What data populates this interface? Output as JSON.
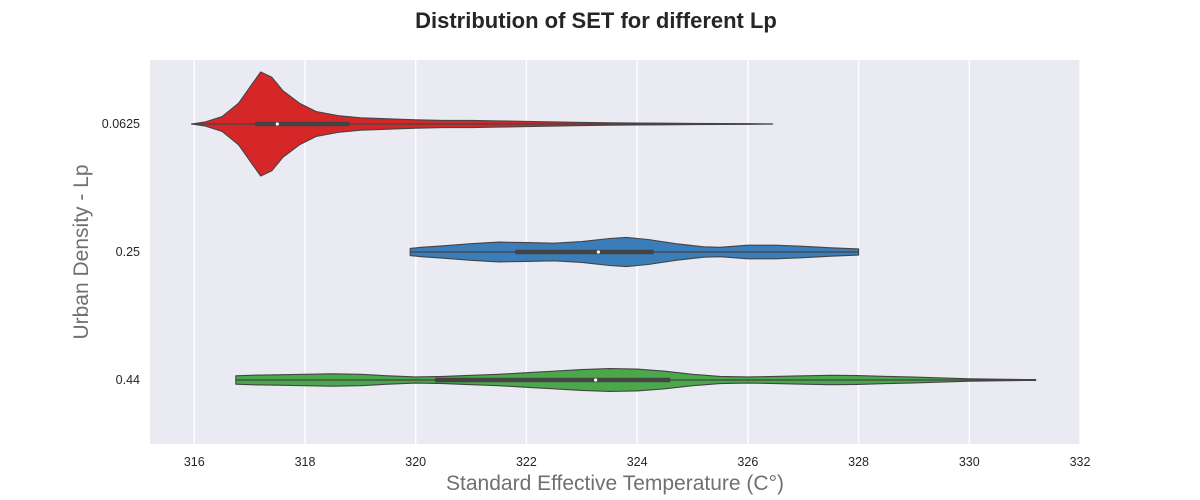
{
  "chart_data": {
    "type": "violin",
    "orientation": "horizontal",
    "title": "Distribution of SET for different Lp",
    "xlabel": "Standard Effective Temperature (C°)",
    "ylabel": "Urban Density - Lp",
    "xlim": [
      315.2,
      332
    ],
    "xticks": [
      316,
      318,
      320,
      322,
      324,
      326,
      328,
      330,
      332
    ],
    "grid": true,
    "background": "#eaeaf2",
    "grid_color": "#ffffff",
    "edge_color": "#444444",
    "categories": [
      "0.0625",
      "0.25",
      "0.44"
    ],
    "series": [
      {
        "category": "0.0625",
        "color": "#d62728",
        "min": 315.95,
        "max": 326.45,
        "q1": 317.1,
        "median": 317.5,
        "q3": 318.8,
        "profile": [
          [
            315.95,
            0.0
          ],
          [
            316.2,
            0.02
          ],
          [
            316.5,
            0.07
          ],
          [
            316.8,
            0.2
          ],
          [
            317.0,
            0.35
          ],
          [
            317.2,
            0.5
          ],
          [
            317.4,
            0.45
          ],
          [
            317.6,
            0.32
          ],
          [
            317.9,
            0.2
          ],
          [
            318.2,
            0.12
          ],
          [
            318.6,
            0.08
          ],
          [
            319.0,
            0.06
          ],
          [
            319.5,
            0.05
          ],
          [
            320.0,
            0.04
          ],
          [
            320.5,
            0.035
          ],
          [
            321.0,
            0.035
          ],
          [
            321.5,
            0.03
          ],
          [
            322.0,
            0.025
          ],
          [
            322.5,
            0.02
          ],
          [
            323.0,
            0.015
          ],
          [
            323.5,
            0.012
          ],
          [
            324.0,
            0.01
          ],
          [
            324.5,
            0.008
          ],
          [
            325.0,
            0.006
          ],
          [
            325.5,
            0.004
          ],
          [
            326.0,
            0.003
          ],
          [
            326.45,
            0.0
          ]
        ]
      },
      {
        "category": "0.25",
        "color": "#3a7db8",
        "min": 319.9,
        "max": 328.0,
        "q1": 321.8,
        "median": 323.3,
        "q3": 324.3,
        "profile": [
          [
            319.9,
            0.035
          ],
          [
            320.1,
            0.045
          ],
          [
            320.5,
            0.06
          ],
          [
            321.0,
            0.08
          ],
          [
            321.5,
            0.095
          ],
          [
            322.0,
            0.09
          ],
          [
            322.5,
            0.085
          ],
          [
            323.0,
            0.1
          ],
          [
            323.5,
            0.13
          ],
          [
            323.8,
            0.14
          ],
          [
            324.2,
            0.12
          ],
          [
            324.7,
            0.08
          ],
          [
            325.2,
            0.05
          ],
          [
            325.5,
            0.045
          ],
          [
            326.0,
            0.065
          ],
          [
            326.5,
            0.065
          ],
          [
            327.0,
            0.055
          ],
          [
            327.5,
            0.04
          ],
          [
            328.0,
            0.03
          ]
        ]
      },
      {
        "category": "0.44",
        "color": "#4aa84a",
        "min": 316.75,
        "max": 331.2,
        "q1": 320.35,
        "median": 323.25,
        "q3": 324.6,
        "profile": [
          [
            316.75,
            0.04
          ],
          [
            317.0,
            0.045
          ],
          [
            317.5,
            0.05
          ],
          [
            318.0,
            0.055
          ],
          [
            318.5,
            0.06
          ],
          [
            319.0,
            0.055
          ],
          [
            319.5,
            0.04
          ],
          [
            320.0,
            0.03
          ],
          [
            320.5,
            0.035
          ],
          [
            321.0,
            0.045
          ],
          [
            321.5,
            0.055
          ],
          [
            322.0,
            0.07
          ],
          [
            322.5,
            0.085
          ],
          [
            323.0,
            0.1
          ],
          [
            323.5,
            0.11
          ],
          [
            324.0,
            0.105
          ],
          [
            324.5,
            0.085
          ],
          [
            325.0,
            0.055
          ],
          [
            325.5,
            0.035
          ],
          [
            326.0,
            0.03
          ],
          [
            326.5,
            0.035
          ],
          [
            327.0,
            0.04
          ],
          [
            327.5,
            0.045
          ],
          [
            328.0,
            0.042
          ],
          [
            328.5,
            0.035
          ],
          [
            329.0,
            0.028
          ],
          [
            329.5,
            0.02
          ],
          [
            330.0,
            0.012
          ],
          [
            330.5,
            0.008
          ],
          [
            331.0,
            0.005
          ],
          [
            331.2,
            0.004
          ]
        ]
      }
    ]
  }
}
